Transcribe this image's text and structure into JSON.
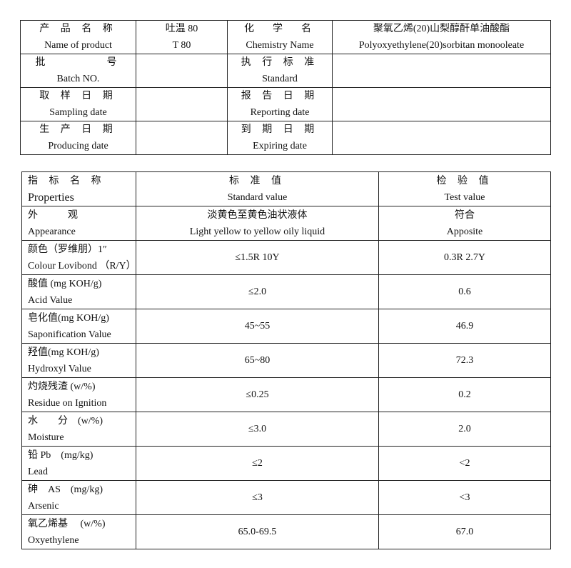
{
  "info": {
    "rows": [
      [
        {
          "zh": "产 品 名 称",
          "en": "Name of product"
        },
        {
          "zh": "吐温 80",
          "en": "T 80"
        },
        {
          "zh": "化　学　名",
          "en": "Chemistry Name"
        },
        {
          "zh": "聚氧乙烯(20)山梨醇酐单油酸酯",
          "en": "Polyoxyethylene(20)sorbitan monooleate"
        }
      ],
      [
        {
          "zh": "批　　　　号",
          "en": "Batch NO."
        },
        {
          "zh": "",
          "en": ""
        },
        {
          "zh": "执 行 标 准",
          "en": "Standard"
        },
        {
          "zh": "",
          "en": ""
        }
      ],
      [
        {
          "zh": "取 样 日 期",
          "en": "Sampling date"
        },
        {
          "zh": "",
          "en": ""
        },
        {
          "zh": "报 告 日 期",
          "en": "Reporting date"
        },
        {
          "zh": "",
          "en": ""
        }
      ],
      [
        {
          "zh": "生 产 日 期",
          "en": "Producing date"
        },
        {
          "zh": "",
          "en": ""
        },
        {
          "zh": "到 期 日 期",
          "en": "Expiring date"
        },
        {
          "zh": "",
          "en": ""
        }
      ]
    ]
  },
  "props": {
    "header": [
      {
        "zh": "指 标 名 称",
        "en": "Properties"
      },
      {
        "zh": "标 准 值",
        "en": "Standard value"
      },
      {
        "zh": "检 验 值",
        "en": "Test value"
      }
    ],
    "rows": [
      {
        "zh": "外　　　观",
        "en": "Appearance",
        "std_zh": "淡黄色至黄色油状液体",
        "std": "Light yellow to yellow oily liquid",
        "test_zh": "符合",
        "test": "Apposite"
      },
      {
        "zh": "颜色（罗维朋）1″",
        "en": "Colour Lovibond （R/Y）",
        "std": "≤1.5R 10Y",
        "test": "0.3R 2.7Y"
      },
      {
        "zh": "酸值 (mg KOH/g)",
        "en": "Acid Value",
        "std": "≤2.0",
        "test": "0.6"
      },
      {
        "zh": "皂化值(mg KOH/g)",
        "en": "Saponification Value",
        "std": "45~55",
        "test": "46.9"
      },
      {
        "zh": "羟值(mg KOH/g)",
        "en": "Hydroxyl Value",
        "std": "65~80",
        "test": "72.3"
      },
      {
        "zh": "灼烧残渣 (w/%)",
        "en": "Residue on Ignition",
        "std": "≤0.25",
        "test": "0.2"
      },
      {
        "zh": "水　　分　(w/%)",
        "en": "Moisture",
        "std": "≤3.0",
        "test": "2.0"
      },
      {
        "zh": "铅 Pb　(mg/kg)",
        "en": "Lead",
        "std": "≤2",
        "test": "<2"
      },
      {
        "zh": "砷　AS　(mg/kg)",
        "en": "Arsenic",
        "std": "≤3",
        "test": "<3"
      },
      {
        "zh": "氧乙烯基　 (w/%)",
        "en": "Oxyethylene",
        "std": "65.0-69.5",
        "test": "67.0"
      }
    ]
  }
}
